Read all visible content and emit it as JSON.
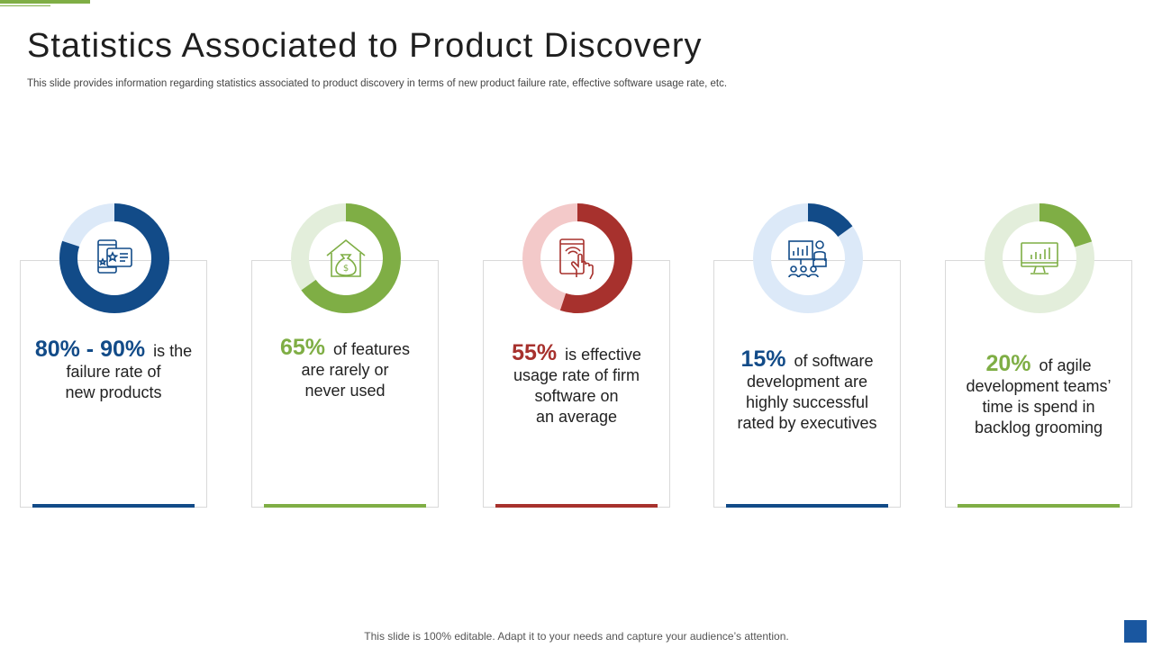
{
  "title": "Statistics Associated to Product Discovery",
  "subtitle": "This slide provides information regarding statistics associated to product discovery in terms of new product failure rate, effective software usage rate, etc.",
  "footer": "This slide is 100% editable. Adapt it to your needs and capture your audience’s attention.",
  "colors": {
    "accent_green": "#7fae45",
    "navy": "#124b88",
    "red": "#a7312d",
    "light_blue": "#dce9f8",
    "light_green": "#e3eedb",
    "light_red": "#f3c9c9"
  },
  "cards": [
    {
      "percent": "80%  - 90%",
      "line1": "is the",
      "line2": "failure rate of",
      "line3": "new products",
      "line4": "",
      "icon": "mobile-rating-icon",
      "fill_fraction": 0.8,
      "color": "#124b88",
      "track": "#dce9f8"
    },
    {
      "percent": "65%",
      "line1": "of features",
      "line2": "are rarely or",
      "line3": "never used",
      "line4": "",
      "icon": "money-house-icon",
      "fill_fraction": 0.65,
      "color": "#7fae45",
      "track": "#e3eedb"
    },
    {
      "percent": "55%",
      "line1": "is effective",
      "line2": "usage rate of firm",
      "line3": "software on",
      "line4": "an average",
      "icon": "tablet-touch-icon",
      "fill_fraction": 0.55,
      "color": "#a7312d",
      "track": "#f3c9c9"
    },
    {
      "percent": "15%",
      "line1": "of software",
      "line2": "development are",
      "line3": "highly successful",
      "line4": "rated by executives",
      "icon": "presentation-audience-icon",
      "fill_fraction": 0.15,
      "color": "#124b88",
      "track": "#dce9f8"
    },
    {
      "percent": "20%",
      "line1": "of agile",
      "line2": "development teams’",
      "line3": "time is spend in",
      "line4": "backlog grooming",
      "icon": "monitor-chart-icon",
      "fill_fraction": 0.2,
      "color": "#7fae45",
      "track": "#e3eedb"
    }
  ]
}
